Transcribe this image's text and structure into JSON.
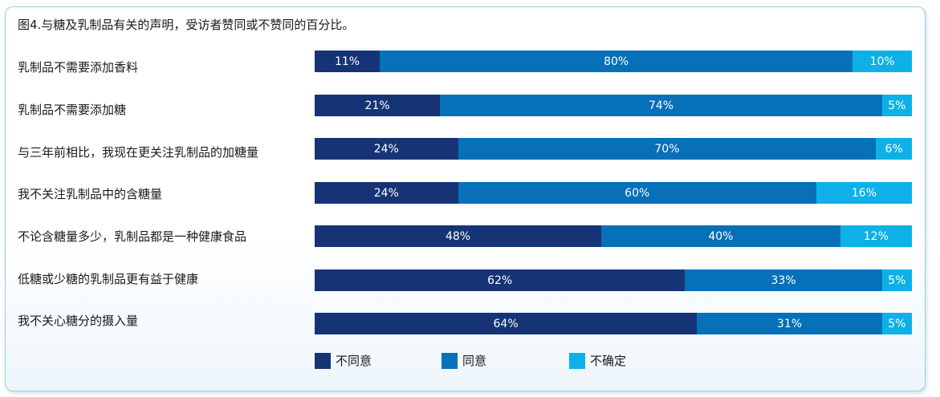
{
  "chart_data": {
    "type": "bar",
    "orientation": "horizontal-stacked",
    "title": "图4.与糖及乳制品有关的声明，受访者赞同或不赞同的百分比。",
    "categories": [
      "乳制品不需要添加香料",
      "乳制品不需要添加糖",
      "与三年前相比，我现在更关注乳制品的加糖量",
      "我不关注乳制品中的含糖量",
      "不论含糖量多少，乳制品都是一种健康食品",
      "低糖或少糖的乳制品更有益于健康",
      "我不关心糖分的摄入量"
    ],
    "series": [
      {
        "name": "不同意",
        "color": "#163475",
        "values": [
          11,
          21,
          24,
          24,
          48,
          62,
          64
        ],
        "labels": [
          "11%",
          "21%",
          "24%",
          "24%",
          "48%",
          "62%",
          "64%"
        ]
      },
      {
        "name": "同意",
        "color": "#0670b8",
        "values": [
          80,
          74,
          70,
          60,
          40,
          33,
          31
        ],
        "labels": [
          "80%",
          "74%",
          "70%",
          "60%",
          "40%",
          "33%",
          "31%"
        ]
      },
      {
        "name": "不确定",
        "color": "#0eb0e8",
        "values": [
          10,
          5,
          6,
          16,
          12,
          5,
          5
        ],
        "labels": [
          "10%",
          "5%",
          "6%",
          "16%",
          "12%",
          "5%",
          "5%"
        ]
      }
    ],
    "xlim": [
      0,
      100
    ],
    "legend_position": "bottom"
  }
}
